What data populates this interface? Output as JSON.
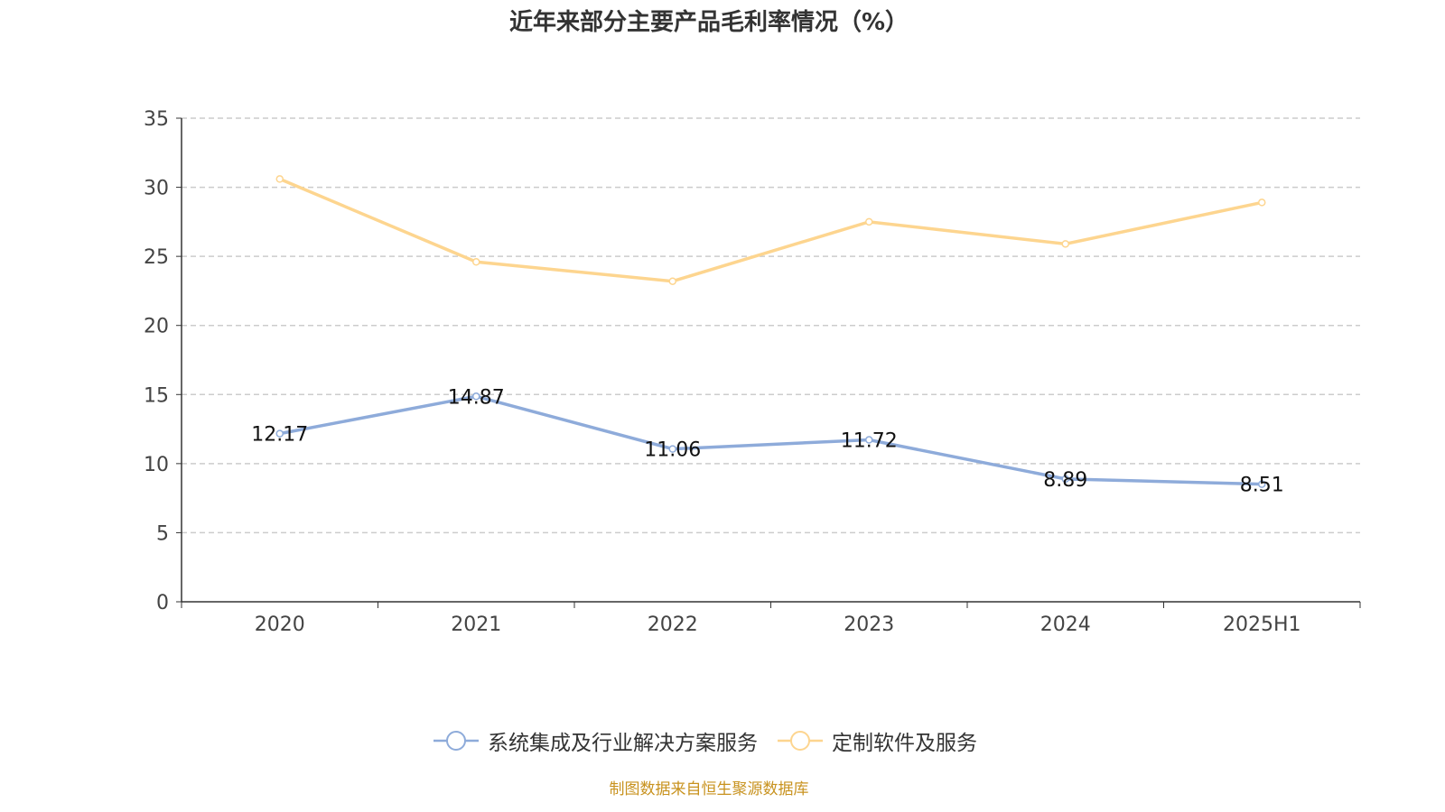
{
  "chart_data": {
    "type": "line",
    "title": "近年来部分主要产品毛利率情况（%）",
    "categories": [
      "2020",
      "2021",
      "2022",
      "2023",
      "2024",
      "2025H1"
    ],
    "ylim": [
      0,
      35
    ],
    "yticks": [
      0,
      5,
      10,
      15,
      20,
      25,
      30,
      35
    ],
    "grid": true,
    "legend_position": "bottom",
    "series": [
      {
        "name": "系统集成及行业解决方案服务",
        "color": "#8eabda",
        "values": [
          12.17,
          14.87,
          11.06,
          11.72,
          8.89,
          8.51
        ],
        "labels": [
          "12.17",
          "14.87",
          "11.06",
          "11.72",
          "8.89",
          "8.51"
        ]
      },
      {
        "name": "定制软件及服务",
        "color": "#fdd58f",
        "values": [
          30.6,
          24.6,
          23.2,
          27.5,
          25.9,
          28.9
        ]
      }
    ]
  },
  "source": "制图数据来自恒生聚源数据库"
}
